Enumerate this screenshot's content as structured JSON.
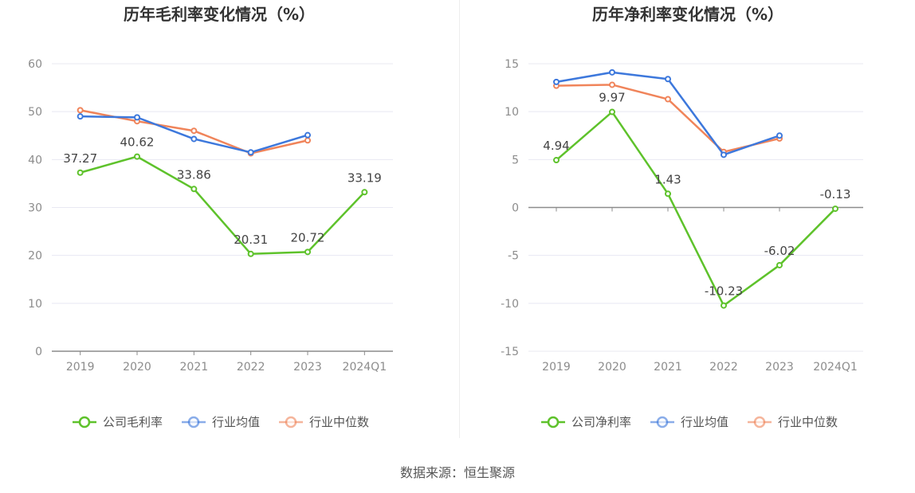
{
  "source_text": "数据来源：恒生聚源",
  "chart_data": [
    {
      "type": "line",
      "title": "历年毛利率变化情况（%）",
      "categories": [
        "2019",
        "2020",
        "2021",
        "2022",
        "2023",
        "2024Q1"
      ],
      "ylim": [
        0,
        60
      ],
      "yticks": [
        0,
        10,
        20,
        30,
        40,
        50,
        60
      ],
      "grid": true,
      "legend_position": "bottom",
      "series": [
        {
          "name": "公司毛利率",
          "color": "#5ec22b",
          "labels": true,
          "values": [
            37.27,
            40.62,
            33.86,
            20.31,
            20.72,
            33.19
          ]
        },
        {
          "name": "行业均值",
          "color": "#3d78dc",
          "labels": false,
          "values": [
            49.0,
            48.8,
            44.3,
            41.5,
            45.1,
            null
          ]
        },
        {
          "name": "行业中位数",
          "color": "#f0845a",
          "labels": false,
          "values": [
            50.3,
            48.0,
            46.0,
            41.3,
            44.0,
            null
          ]
        }
      ]
    },
    {
      "type": "line",
      "title": "历年净利率变化情况（%）",
      "categories": [
        "2019",
        "2020",
        "2021",
        "2022",
        "2023",
        "2024Q1"
      ],
      "ylim": [
        -15,
        15
      ],
      "yticks": [
        -15,
        -10,
        -5,
        0,
        5,
        10,
        15
      ],
      "grid": true,
      "legend_position": "bottom",
      "series": [
        {
          "name": "公司净利率",
          "color": "#5ec22b",
          "labels": true,
          "values": [
            4.94,
            9.97,
            1.43,
            -10.23,
            -6.02,
            -0.13
          ]
        },
        {
          "name": "行业均值",
          "color": "#3d78dc",
          "labels": false,
          "values": [
            13.1,
            14.1,
            13.4,
            5.5,
            7.5,
            null
          ]
        },
        {
          "name": "行业中位数",
          "color": "#f0845a",
          "labels": false,
          "values": [
            12.7,
            12.8,
            11.3,
            5.8,
            7.2,
            null
          ]
        }
      ]
    }
  ]
}
